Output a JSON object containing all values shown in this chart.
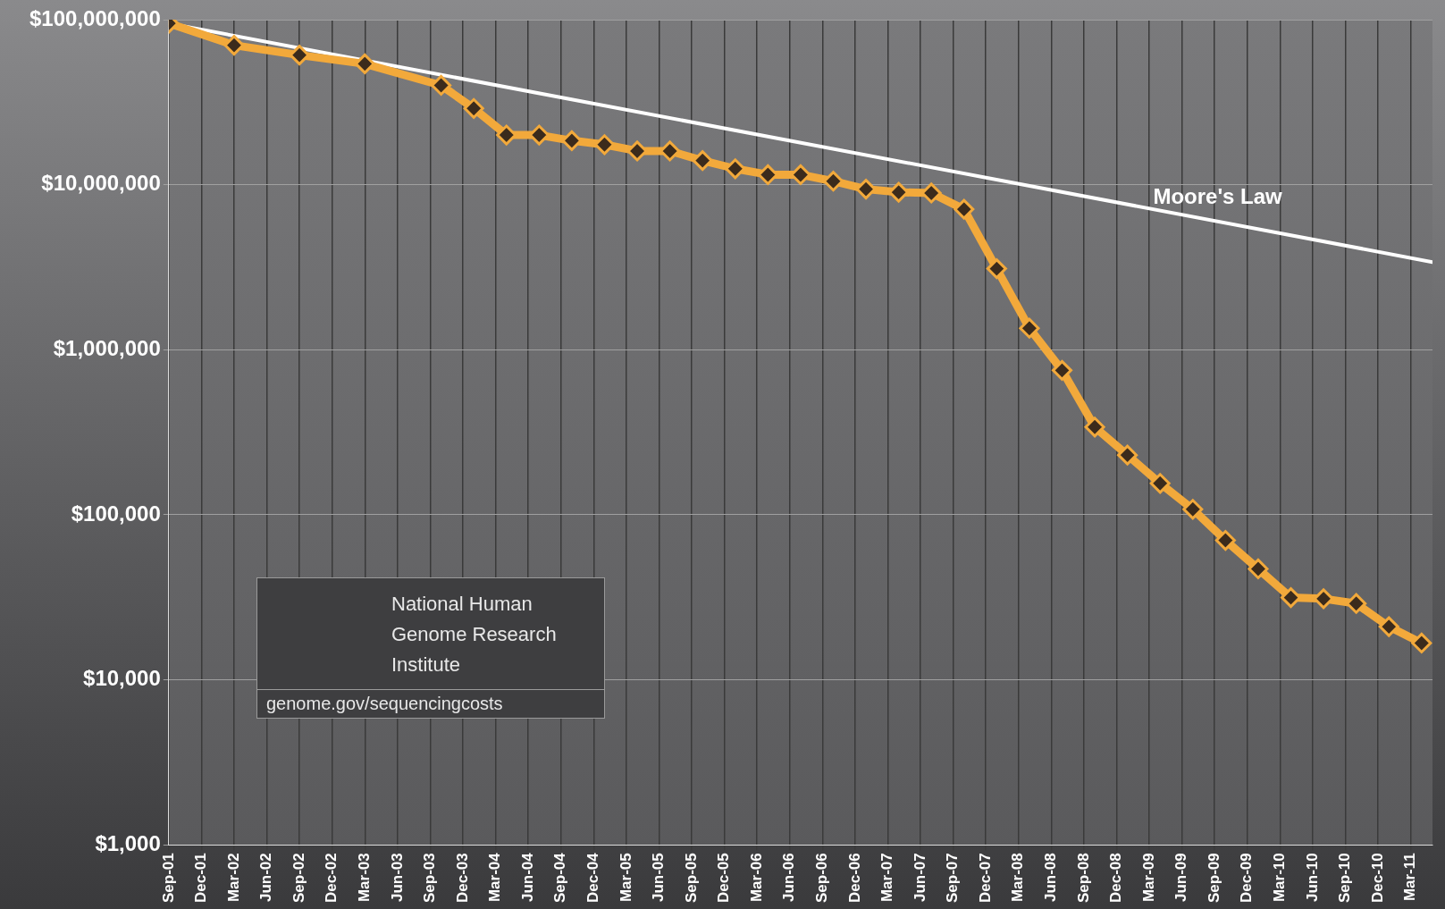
{
  "chart_data": {
    "type": "line",
    "log": "y",
    "grid": true,
    "legend": false,
    "marker": "diamond",
    "line_style": "solid",
    "xlim": [
      "2001-09",
      "2011-05"
    ],
    "xticks": [
      {
        "value": "2001-09",
        "label": "Sep-01"
      },
      {
        "value": "2001-12",
        "label": "Dec-01"
      },
      {
        "value": "2002-03",
        "label": "Mar-02"
      },
      {
        "value": "2002-06",
        "label": "Jun-02"
      },
      {
        "value": "2002-09",
        "label": "Sep-02"
      },
      {
        "value": "2002-12",
        "label": "Dec-02"
      },
      {
        "value": "2003-03",
        "label": "Mar-03"
      },
      {
        "value": "2003-06",
        "label": "Jun-03"
      },
      {
        "value": "2003-09",
        "label": "Sep-03"
      },
      {
        "value": "2003-12",
        "label": "Dec-03"
      },
      {
        "value": "2004-03",
        "label": "Mar-04"
      },
      {
        "value": "2004-06",
        "label": "Jun-04"
      },
      {
        "value": "2004-09",
        "label": "Sep-04"
      },
      {
        "value": "2004-12",
        "label": "Dec-04"
      },
      {
        "value": "2005-03",
        "label": "Mar-05"
      },
      {
        "value": "2005-06",
        "label": "Jun-05"
      },
      {
        "value": "2005-09",
        "label": "Sep-05"
      },
      {
        "value": "2005-12",
        "label": "Dec-05"
      },
      {
        "value": "2006-03",
        "label": "Mar-06"
      },
      {
        "value": "2006-06",
        "label": "Jun-06"
      },
      {
        "value": "2006-09",
        "label": "Sep-06"
      },
      {
        "value": "2006-12",
        "label": "Dec-06"
      },
      {
        "value": "2007-03",
        "label": "Mar-07"
      },
      {
        "value": "2007-06",
        "label": "Jun-07"
      },
      {
        "value": "2007-09",
        "label": "Sep-07"
      },
      {
        "value": "2007-12",
        "label": "Dec-07"
      },
      {
        "value": "2008-03",
        "label": "Mar-08"
      },
      {
        "value": "2008-06",
        "label": "Jun-08"
      },
      {
        "value": "2008-09",
        "label": "Sep-08"
      },
      {
        "value": "2008-12",
        "label": "Dec-08"
      },
      {
        "value": "2009-03",
        "label": "Mar-09"
      },
      {
        "value": "2009-06",
        "label": "Jun-09"
      },
      {
        "value": "2009-09",
        "label": "Sep-09"
      },
      {
        "value": "2009-12",
        "label": "Dec-09"
      },
      {
        "value": "2010-03",
        "label": "Mar-10"
      },
      {
        "value": "2010-06",
        "label": "Jun-10"
      },
      {
        "value": "2010-09",
        "label": "Sep-10"
      },
      {
        "value": "2010-12",
        "label": "Dec-10"
      },
      {
        "value": "2011-03",
        "label": "Mar-11"
      }
    ],
    "ylim": [
      1000,
      100000000
    ],
    "yticks": [
      {
        "value": 1000,
        "label": "$1,000"
      },
      {
        "value": 10000,
        "label": "$10,000"
      },
      {
        "value": 100000,
        "label": "$100,000"
      },
      {
        "value": 1000000,
        "label": "$1,000,000"
      },
      {
        "value": 10000000,
        "label": "$10,000,000"
      },
      {
        "value": 100000000,
        "label": "$100,000,000"
      }
    ],
    "series": [
      {
        "color": "#f2a93b",
        "x": [
          "2001-09",
          "2002-03",
          "2002-09",
          "2003-03",
          "2003-10",
          "2004-01",
          "2004-04",
          "2004-07",
          "2004-10",
          "2005-01",
          "2005-04",
          "2005-07",
          "2005-10",
          "2006-01",
          "2006-04",
          "2006-07",
          "2006-10",
          "2007-01",
          "2007-04",
          "2007-07",
          "2007-10",
          "2008-01",
          "2008-04",
          "2008-07",
          "2008-10",
          "2009-01",
          "2009-04",
          "2009-07",
          "2009-10",
          "2010-01",
          "2010-04",
          "2010-07",
          "2010-10",
          "2011-01",
          "2011-04"
        ],
        "values": [
          95000000,
          70000000,
          61000000,
          54000000,
          40000000,
          29000000,
          20000000,
          20000000,
          18500000,
          17500000,
          16000000,
          16000000,
          14000000,
          12500000,
          11500000,
          11500000,
          10500000,
          9400000,
          9000000,
          8900000,
          7100000,
          3100000,
          1350000,
          750000,
          340000,
          230000,
          155000,
          108000,
          70000,
          47000,
          31500,
          31000,
          29000,
          21000,
          16700
        ]
      },
      {
        "name": "Moore's Law",
        "color": "#ffffff",
        "marker": "none",
        "x": [
          "2001-09",
          "2011-05"
        ],
        "values": [
          95000000,
          3400000
        ]
      }
    ],
    "annotations": [
      "National Human Genome Research Institute",
      "genome.gov/sequencingcosts"
    ]
  }
}
